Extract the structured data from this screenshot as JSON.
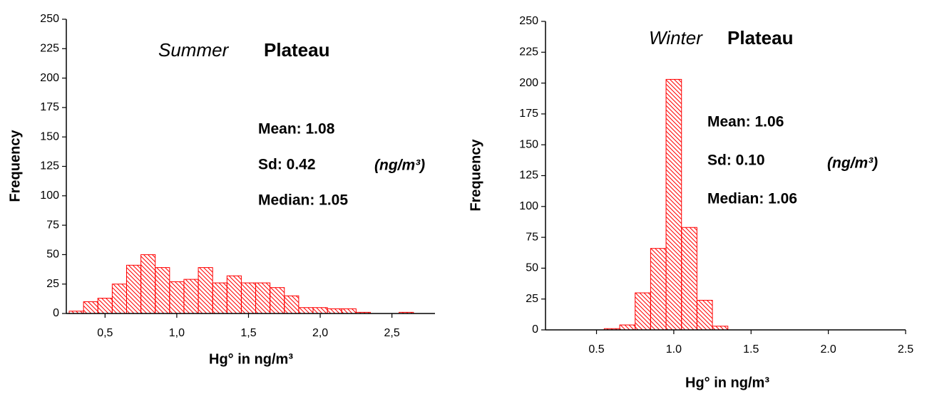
{
  "chart_data": [
    {
      "type": "histogram",
      "title": [
        "Summer",
        "Plateau"
      ],
      "x_label": "Hg° in ng/m³",
      "y_label": "Frequency",
      "annotations": [
        "Mean: 1.08",
        "Sd: 0.42",
        "Median: 1.05",
        "(ng/m³)"
      ],
      "bins": [
        0.25,
        0.35,
        0.45,
        0.55,
        0.65,
        0.75,
        0.85,
        0.95,
        1.05,
        1.15,
        1.25,
        1.35,
        1.45,
        1.55,
        1.65,
        1.75,
        1.85,
        1.95,
        2.05,
        2.15,
        2.25,
        2.35,
        2.45,
        2.55,
        2.65
      ],
      "values": [
        2,
        10,
        13,
        25,
        41,
        50,
        39,
        27,
        29,
        39,
        26,
        32,
        26,
        26,
        22,
        15,
        5,
        5,
        4,
        4,
        1,
        0,
        0,
        1
      ],
      "color": "#ff0000",
      "xlim": [
        0.23,
        2.8
      ],
      "xticks": [
        {
          "value": 0.5,
          "label": "0,5"
        },
        {
          "value": 1,
          "label": "1,0"
        },
        {
          "value": 1.5,
          "label": "1,5"
        },
        {
          "value": 2,
          "label": "2,0"
        },
        {
          "value": 2.5,
          "label": "2,5"
        }
      ],
      "ylim": [
        0,
        250
      ],
      "yticks": [
        0,
        25,
        50,
        75,
        100,
        125,
        150,
        175,
        200,
        225,
        250
      ]
    },
    {
      "type": "histogram",
      "title": [
        "Winter",
        "Plateau"
      ],
      "x_label": "Hg° in ng/m³",
      "y_label": "Frequency",
      "annotations": [
        "Mean: 1.06",
        "Sd: 0.10",
        "Median: 1.06",
        "(ng/m³)"
      ],
      "bins": [
        0.55,
        0.65,
        0.75,
        0.85,
        0.95,
        1.05,
        1.15,
        1.25,
        1.35
      ],
      "values": [
        1,
        4,
        30,
        66,
        203,
        83,
        24,
        3
      ],
      "color": "#ff0000",
      "xlim": [
        0.17,
        2.5
      ],
      "xticks": [
        0.5,
        {
          "value": 1,
          "label": "1.0"
        },
        1.5,
        {
          "value": 2,
          "label": "2.0"
        },
        2.5
      ],
      "ylim": [
        0,
        250
      ],
      "yticks": [
        0,
        25,
        50,
        75,
        100,
        125,
        150,
        175,
        200,
        225,
        250
      ]
    }
  ]
}
